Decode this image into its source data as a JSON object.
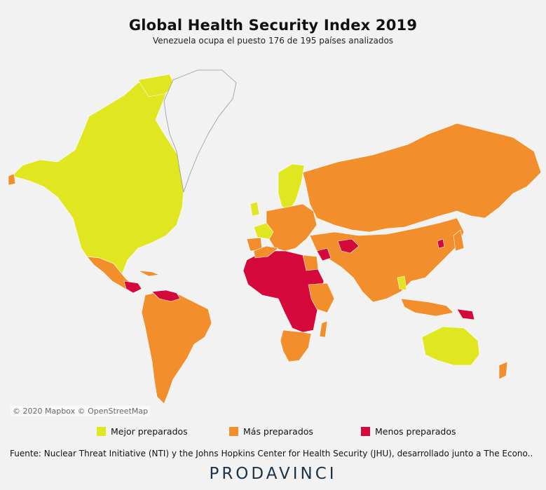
{
  "header": {
    "title": "Global Health Security Index 2019",
    "subtitle": "Venezuela ocupa el puesto 176 de 195 países analizados"
  },
  "map": {
    "attribution": "© 2020 Mapbox © OpenStreetMap"
  },
  "legend": [
    {
      "label": "Mejor preparados",
      "color": "#e0e620"
    },
    {
      "label": "Más preparados",
      "color": "#f28e2b"
    },
    {
      "label": "Menos preparados",
      "color": "#d4083b"
    }
  ],
  "footer": {
    "source": "Fuente: Nuclear Threat Initiative (NTI) y the Johns Hopkins Center for Health Security (JHU), desarrollado junto a The Econo..",
    "brand": "PRODAVINCI"
  }
}
